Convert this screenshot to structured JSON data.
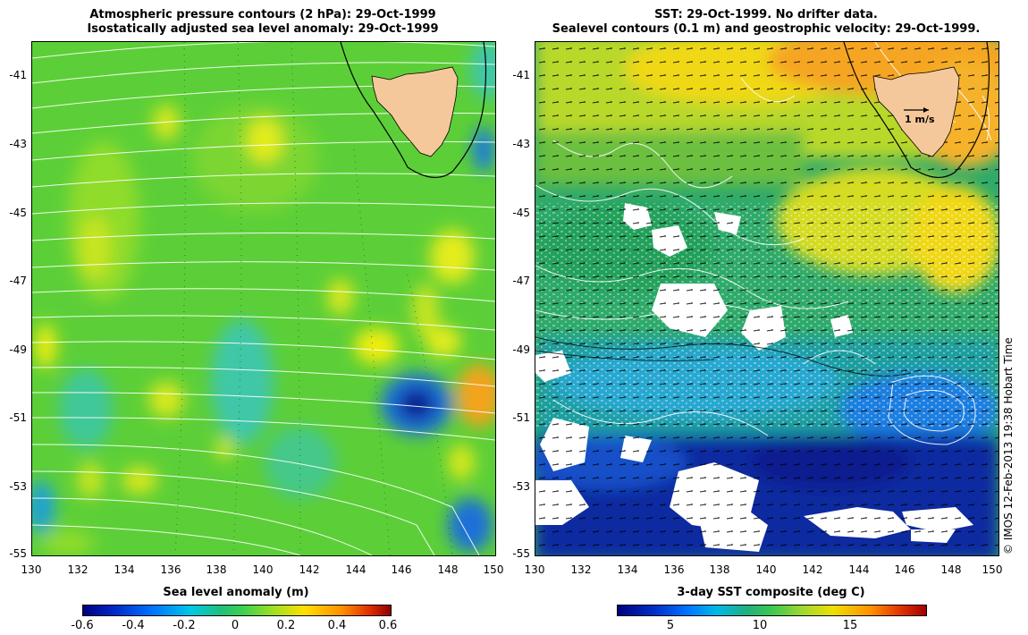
{
  "left_panel": {
    "title_line1": "Atmospheric pressure contours (2 hPa): 29-Oct-1999",
    "title_line2": "Isostatically adjusted sea level anomaly: 29-Oct-1999",
    "colorbar": {
      "title": "Sea level anomaly (m)",
      "ticks": [
        "-0.6",
        "-0.4",
        "-0.2",
        "0",
        "0.2",
        "0.4",
        "0.6"
      ],
      "range": [
        -0.6,
        0.6
      ],
      "colormap": [
        "#00007f",
        "#0070ff",
        "#00d8d8",
        "#3cd050",
        "#a0e020",
        "#ffe000",
        "#ff6000",
        "#900000"
      ]
    }
  },
  "right_panel": {
    "title_line1": "SST: 29-Oct-1999. No drifter data.",
    "title_line2": "Sealevel contours (0.1 m) and geostrophic velocity: 29-Oct-1999.",
    "velocity_label": "1 m/s",
    "colorbar": {
      "title": "3-day SST composite (deg C)",
      "ticks": [
        "5",
        "10",
        "15"
      ],
      "range": [
        2,
        19
      ],
      "colormap": [
        "#00007f",
        "#0060ff",
        "#00c0e0",
        "#30c060",
        "#a0d830",
        "#f0e000",
        "#ff8000",
        "#b00000"
      ]
    }
  },
  "axes": {
    "lat_ticks": [
      "-41",
      "-43",
      "-45",
      "-47",
      "-49",
      "-51",
      "-53",
      "-55"
    ],
    "lon_ticks": [
      "130",
      "132",
      "134",
      "136",
      "138",
      "140",
      "142",
      "144",
      "146",
      "148",
      "150"
    ],
    "lat_range": [
      -55,
      -40
    ],
    "lon_range": [
      130,
      150
    ]
  },
  "credit": "© IMOS 12-Feb-2013 19:38 Hobart Time",
  "land_color": "#f5c89b",
  "pressure_contour_color": "#ffffff"
}
